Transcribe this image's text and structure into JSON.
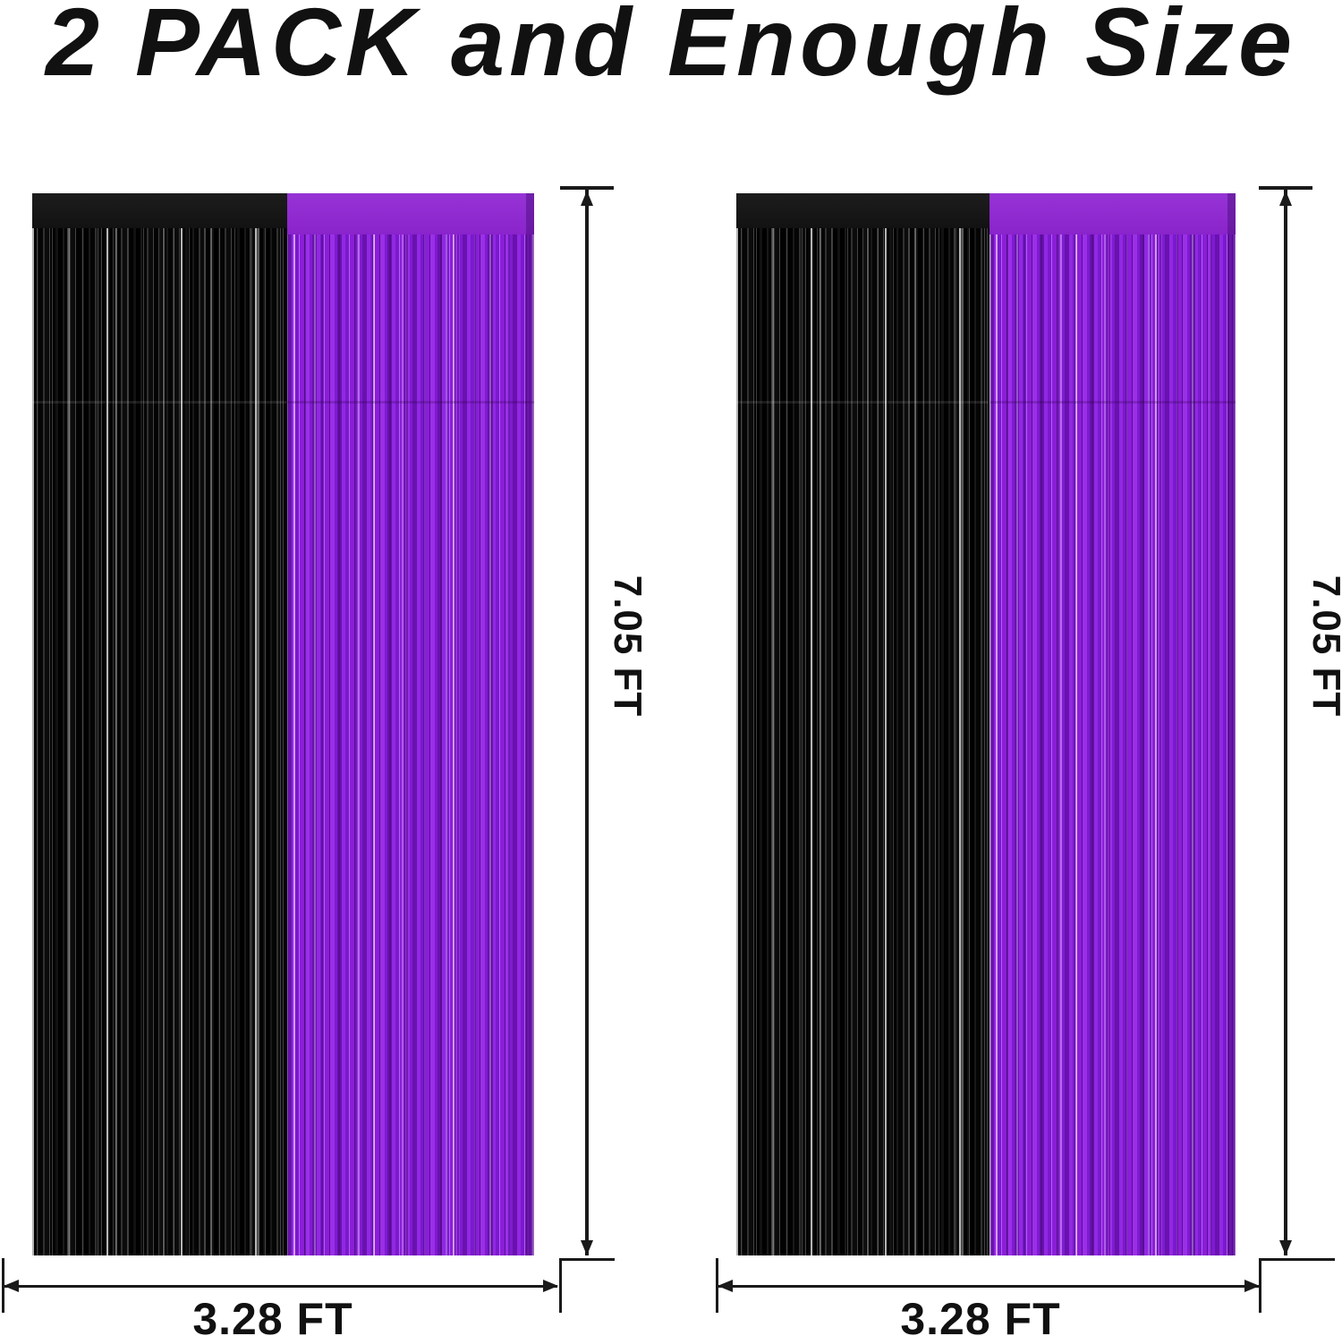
{
  "title": "2 PACK and Enough Size",
  "panels": [
    {
      "name": "left curtain",
      "height_label": "7.05 FT",
      "width_label": "3.28 FT"
    },
    {
      "name": "right curtain",
      "height_label": "7.05 FT",
      "width_label": "3.28 FT"
    }
  ],
  "colors": {
    "background": "#FFFFFF",
    "text": "#111111",
    "dimension_line": "#1A1A1A",
    "black_foil_header": "#121212",
    "black_foil": "#060606",
    "purple_foil_header": "#8A24CB",
    "purple_foil": "#8A1ED6"
  }
}
